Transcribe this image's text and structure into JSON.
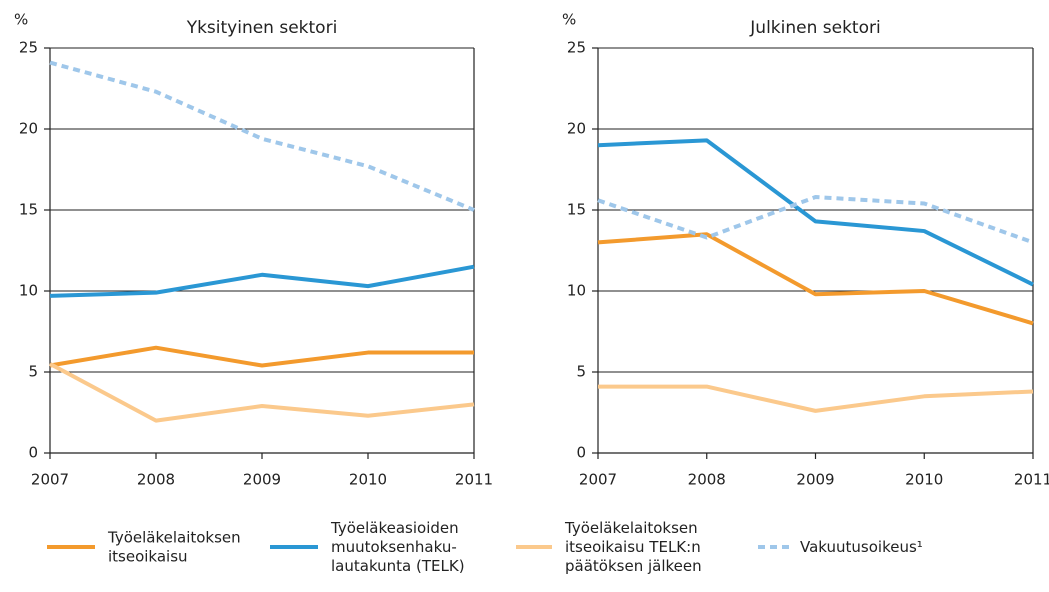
{
  "chart_data": [
    {
      "type": "line",
      "title": "Yksityinen sektori",
      "y_label": "%",
      "x": [
        2007,
        2008,
        2009,
        2010,
        2011
      ],
      "xlim": [
        2007,
        2011
      ],
      "xticks": [
        2007,
        2008,
        2009,
        2010,
        2011
      ],
      "ylim": [
        0,
        25
      ],
      "yticks": [
        0,
        5,
        10,
        15,
        20,
        25
      ],
      "grid": true,
      "series": [
        {
          "name": "Työeläkelaitoksen\nitseoikaisu",
          "color": "#f39a2d",
          "dash": false,
          "values": [
            5.4,
            6.5,
            5.4,
            6.2,
            6.2
          ]
        },
        {
          "name": "Työeläkeasioiden\nmuutoksenhaku-\nlautakunta (TELK)",
          "color": "#2a97d4",
          "dash": false,
          "values": [
            9.7,
            9.9,
            11.0,
            10.3,
            11.5
          ]
        },
        {
          "name": "Työeläkelaitoksen\nitseoikaisu TELK:n\npäätöksen jälkeen",
          "color": "#fbc98c",
          "dash": false,
          "values": [
            5.5,
            2.0,
            2.9,
            2.3,
            3.0
          ]
        },
        {
          "name": "Vakuutusoikeus¹",
          "color": "#9fc7ea",
          "dash": true,
          "values": [
            24.1,
            22.3,
            19.4,
            17.7,
            15.0
          ]
        }
      ]
    },
    {
      "type": "line",
      "title": "Julkinen sektori",
      "y_label": "%",
      "x": [
        2007,
        2008,
        2009,
        2010,
        2011
      ],
      "xlim": [
        2007,
        2011
      ],
      "xticks": [
        2007,
        2008,
        2009,
        2010,
        2011
      ],
      "ylim": [
        0,
        25
      ],
      "yticks": [
        0,
        5,
        10,
        15,
        20,
        25
      ],
      "grid": true,
      "series": [
        {
          "color": "#f39a2d",
          "dash": false,
          "values": [
            13.0,
            13.5,
            9.8,
            10.0,
            8.0
          ]
        },
        {
          "color": "#2a97d4",
          "dash": false,
          "values": [
            19.0,
            19.3,
            14.3,
            13.7,
            10.4
          ]
        },
        {
          "color": "#fbc98c",
          "dash": false,
          "values": [
            4.1,
            4.1,
            2.6,
            3.5,
            3.8
          ]
        },
        {
          "color": "#9fc7ea",
          "dash": true,
          "values": [
            15.6,
            13.3,
            15.8,
            15.4,
            13.0
          ]
        }
      ]
    }
  ]
}
